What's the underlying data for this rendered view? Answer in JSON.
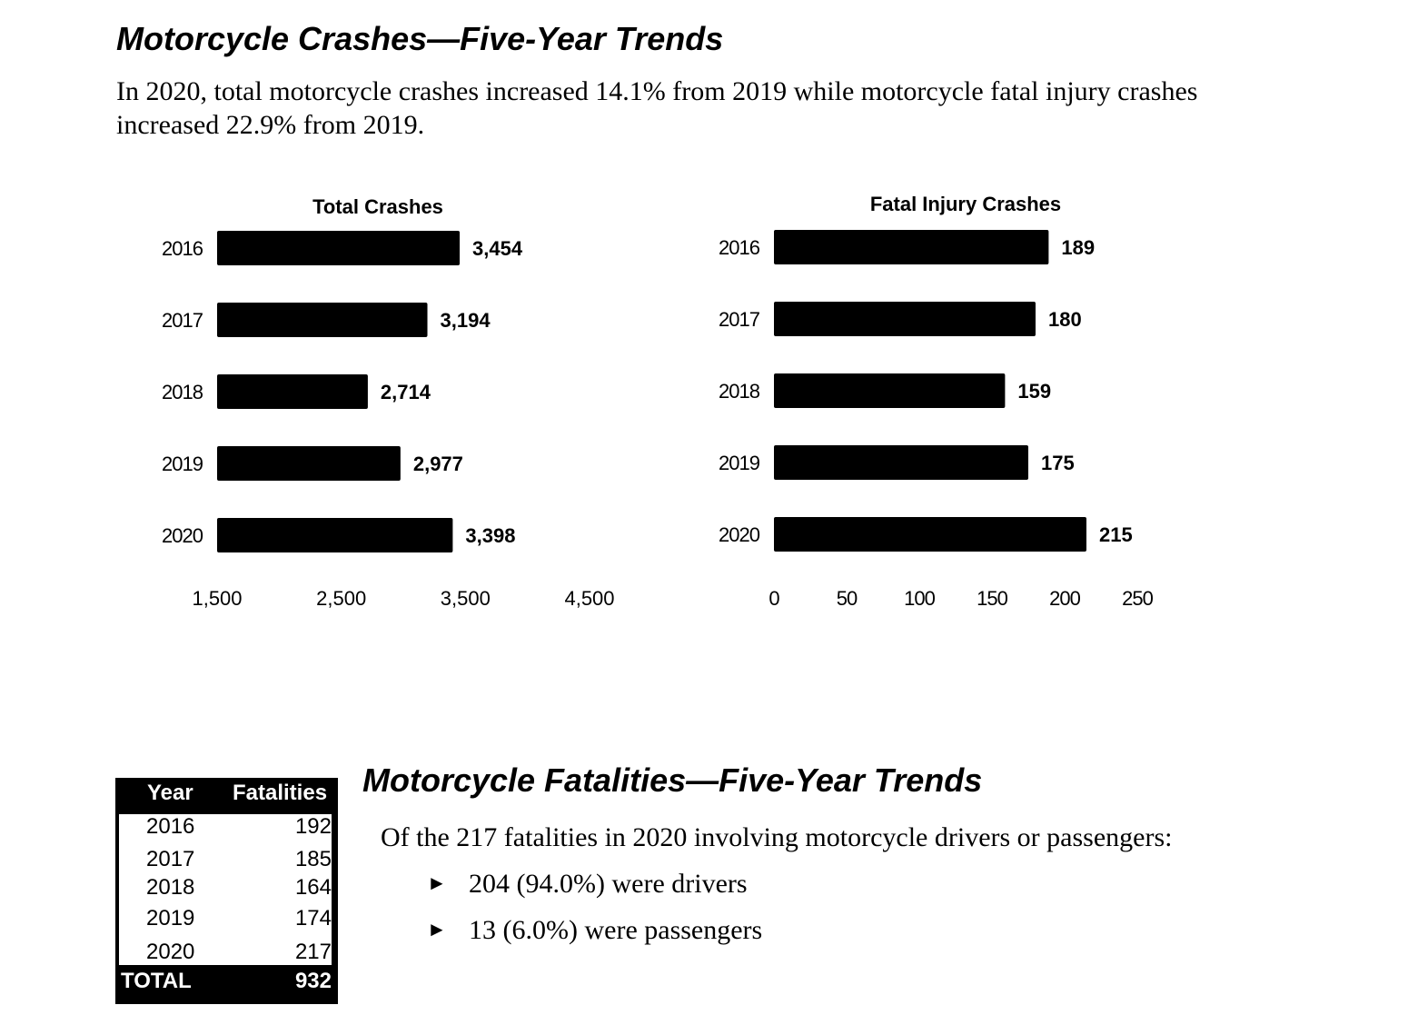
{
  "page": {
    "title": "Motorcycle Crashes—Five-Year Trends",
    "intro": "In 2020, total motorcycle crashes increased 14.1% from 2019 while motorcycle fatal injury crashes increased 22.9% from 2019."
  },
  "fatalities_section": {
    "title": "Motorcycle Fatalities—Five-Year Trends",
    "intro": "Of the 217 fatalities in 2020 involving motorcycle drivers or passengers:",
    "bullet_marker": "►",
    "bullets": [
      "204 (94.0%) were drivers",
      "13 (6.0%) were passengers"
    ]
  },
  "fatalities_table": {
    "headers": [
      "Year",
      "Fatalities"
    ],
    "rows": [
      [
        "2016",
        "192"
      ],
      [
        "2017",
        "185"
      ],
      [
        "2018",
        "164"
      ],
      [
        "2019",
        "174"
      ],
      [
        "2020",
        "217"
      ]
    ],
    "total_label": "TOTAL",
    "total_value": "932"
  },
  "chart_data": [
    {
      "type": "bar",
      "orientation": "horizontal",
      "title": "Total Crashes",
      "categories": [
        "2016",
        "2017",
        "2018",
        "2019",
        "2020"
      ],
      "values": [
        3454,
        3194,
        2714,
        2977,
        3398
      ],
      "value_labels": [
        "3,454",
        "3,194",
        "2,714",
        "2,977",
        "3,398"
      ],
      "xlim": [
        1500,
        4500
      ],
      "xticks": [
        1500,
        2500,
        3500,
        4500
      ],
      "xtick_labels": [
        "1,500",
        "2,500",
        "3,500",
        "4,500"
      ],
      "bar_color": "#000000",
      "grid": false,
      "legend": "none"
    },
    {
      "type": "bar",
      "orientation": "horizontal",
      "title": "Fatal Injury Crashes",
      "categories": [
        "2016",
        "2017",
        "2018",
        "2019",
        "2020"
      ],
      "values": [
        189,
        180,
        159,
        175,
        215
      ],
      "value_labels": [
        "189",
        "180",
        "159",
        "175",
        "215"
      ],
      "xlim": [
        0,
        250
      ],
      "xticks": [
        0,
        50,
        100,
        150,
        200,
        250
      ],
      "xtick_labels": [
        "0",
        "50",
        "100",
        "150",
        "200",
        "250"
      ],
      "bar_color": "#000000",
      "grid": false,
      "legend": "none"
    }
  ]
}
